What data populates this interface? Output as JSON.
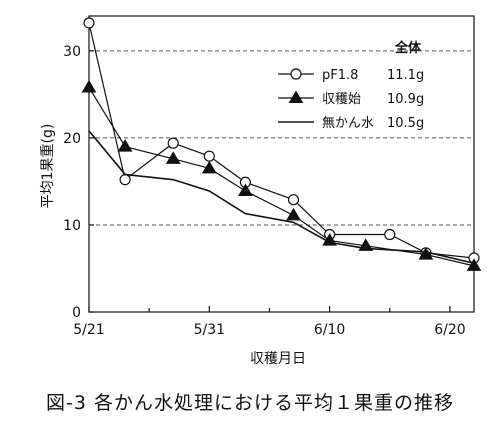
{
  "chart_data": {
    "type": "line",
    "title": "図-3 各かん水処理における平均１果重の推移",
    "xlabel": "収穫月日",
    "ylabel": "平均1果重(g)",
    "x_ticks": [
      "5/21",
      "5/31",
      "6/10",
      "6/20"
    ],
    "x_tick_values": [
      0,
      10,
      20,
      30
    ],
    "y_ticks": [
      "0",
      "10",
      "20",
      "30"
    ],
    "y_tick_values": [
      0,
      10,
      20,
      30
    ],
    "xlim": [
      0,
      32
    ],
    "ylim": [
      0,
      34
    ],
    "grid": "dashed horizontal at 10, 20, 30",
    "legend_header": "全体",
    "series": [
      {
        "name": "pF1.8",
        "total": "11.1g",
        "marker": "open-circle",
        "x": [
          0,
          3,
          7,
          10,
          13,
          17,
          20,
          25,
          28,
          32
        ],
        "values": [
          33.2,
          15.2,
          19.4,
          17.9,
          14.9,
          12.9,
          8.9,
          8.9,
          6.8,
          6.2
        ]
      },
      {
        "name": "収穫始",
        "total": "10.9g",
        "marker": "filled-triangle",
        "x": [
          0,
          3,
          7,
          10,
          13,
          17,
          20,
          23,
          28,
          32
        ],
        "values": [
          25.8,
          19.0,
          17.6,
          16.5,
          13.9,
          11.1,
          8.2,
          7.6,
          6.6,
          5.3
        ]
      },
      {
        "name": "無かん水",
        "total": "10.5g",
        "marker": "none",
        "x": [
          0,
          3,
          7,
          10,
          13,
          17,
          20,
          23,
          28,
          32
        ],
        "values": [
          20.8,
          15.8,
          15.2,
          13.9,
          11.3,
          10.3,
          8.0,
          7.3,
          6.9,
          5.6
        ]
      }
    ]
  }
}
